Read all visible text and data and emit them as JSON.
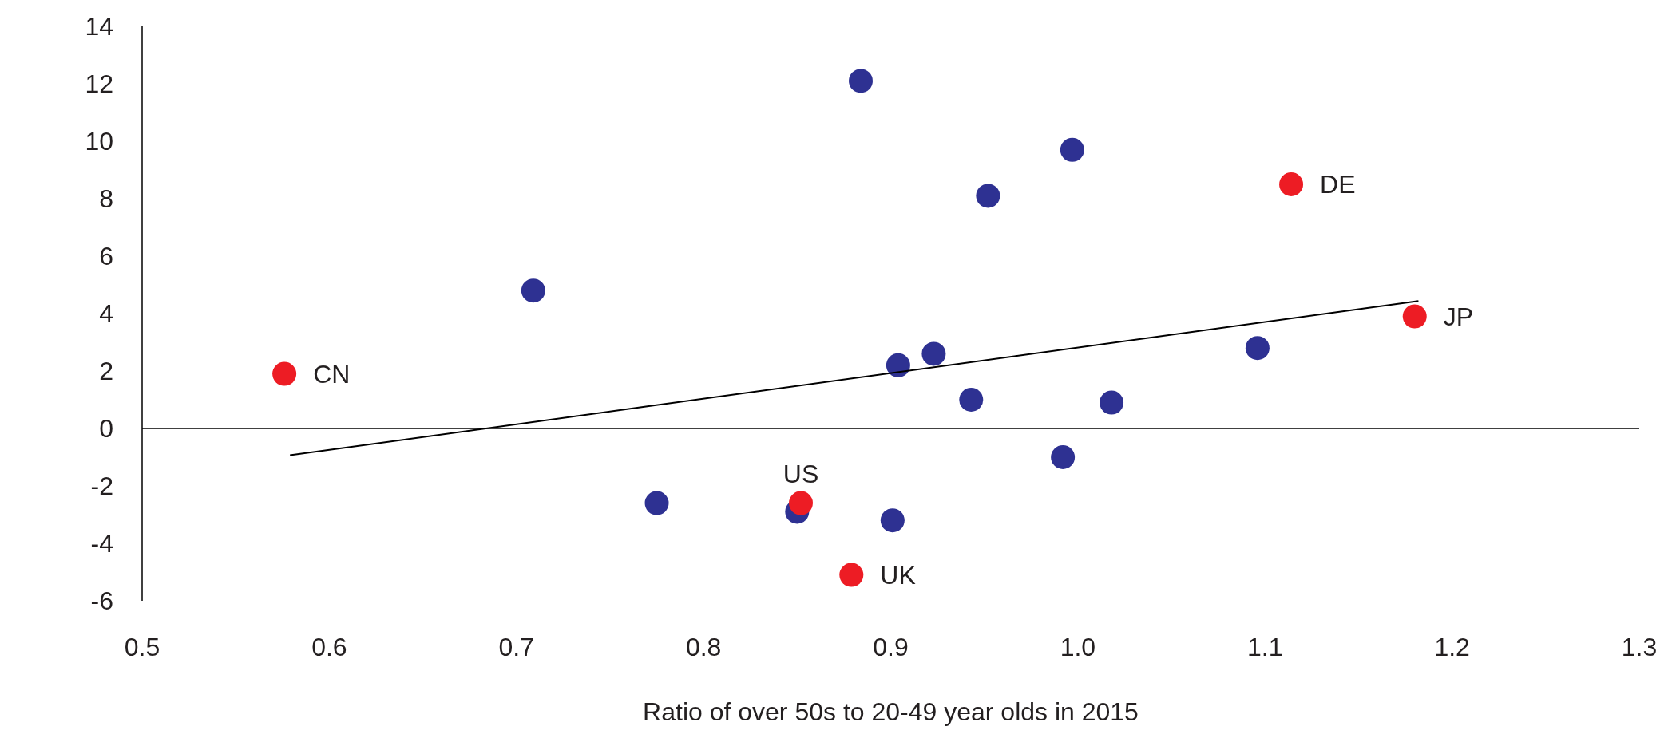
{
  "chart_data": {
    "type": "scatter",
    "xlabel": "Ratio of over 50s to 20-49 year olds in 2015",
    "series": [
      {
        "color": "#2e3192",
        "x": [
          0.884,
          0.997,
          0.952,
          0.709,
          0.904,
          0.923,
          0.943,
          1.018,
          1.096,
          0.992,
          0.775,
          0.85,
          0.901
        ],
        "values": [
          12.1,
          9.7,
          8.1,
          4.8,
          2.2,
          2.6,
          1.0,
          0.9,
          2.8,
          -1.0,
          -2.6,
          -2.9,
          -3.2
        ]
      },
      {
        "color": "#ed1c24",
        "x": [
          0.576,
          1.114,
          1.18,
          0.852,
          0.879
        ],
        "values": [
          1.9,
          8.5,
          3.9,
          -2.6,
          -5.1
        ]
      },
      {
        "type": "line",
        "marker": "none",
        "color": "#000000",
        "x": [
          0.579,
          1.182
        ],
        "values": [
          -0.93,
          4.44
        ]
      }
    ],
    "annotations": [
      {
        "text": "CN",
        "x": 0.576,
        "y": 1.9
      },
      {
        "text": "DE",
        "x": 1.114,
        "y": 8.5
      },
      {
        "text": "JP",
        "x": 1.18,
        "y": 3.9
      },
      {
        "text": "US",
        "x": 0.852,
        "y": -2.6
      },
      {
        "text": "UK",
        "x": 0.879,
        "y": -5.1
      }
    ],
    "xlim": [
      0.5,
      1.3
    ],
    "xticks": [
      0.5,
      0.6,
      0.7,
      0.8,
      0.9,
      {
        "value": 1,
        "label": "1.0"
      },
      1.1,
      1.2,
      1.3
    ],
    "ylim": [
      -6,
      14
    ],
    "yticks": [
      -6,
      -4,
      -2,
      0,
      2,
      4,
      6,
      8,
      10,
      12,
      14
    ],
    "ref_lines": [
      {
        "axis": "y",
        "value": 0,
        "color": "#000000"
      }
    ],
    "grid": false,
    "marker": "circle"
  }
}
